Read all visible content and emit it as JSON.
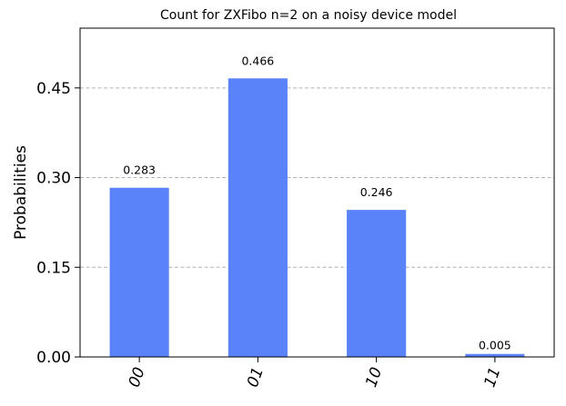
{
  "chart_data": {
    "type": "bar",
    "title": "Count for ZXFibo n=2 on a noisy device model",
    "xlabel": "",
    "ylabel": "Probabilities",
    "categories": [
      "00",
      "01",
      "10",
      "11"
    ],
    "values": [
      0.283,
      0.466,
      0.246,
      0.005
    ],
    "data_labels": [
      "0.283",
      "0.466",
      "0.246",
      "0.005"
    ],
    "yticks": [
      0.0,
      0.15,
      0.3,
      0.45
    ],
    "ytick_labels": [
      "0.00",
      "0.15",
      "0.30",
      "0.45"
    ],
    "ylim": [
      0,
      0.55
    ],
    "grid": "horizontal dashed",
    "bar_color": "#5a83f9",
    "grid_color": "#b3b3b3"
  }
}
